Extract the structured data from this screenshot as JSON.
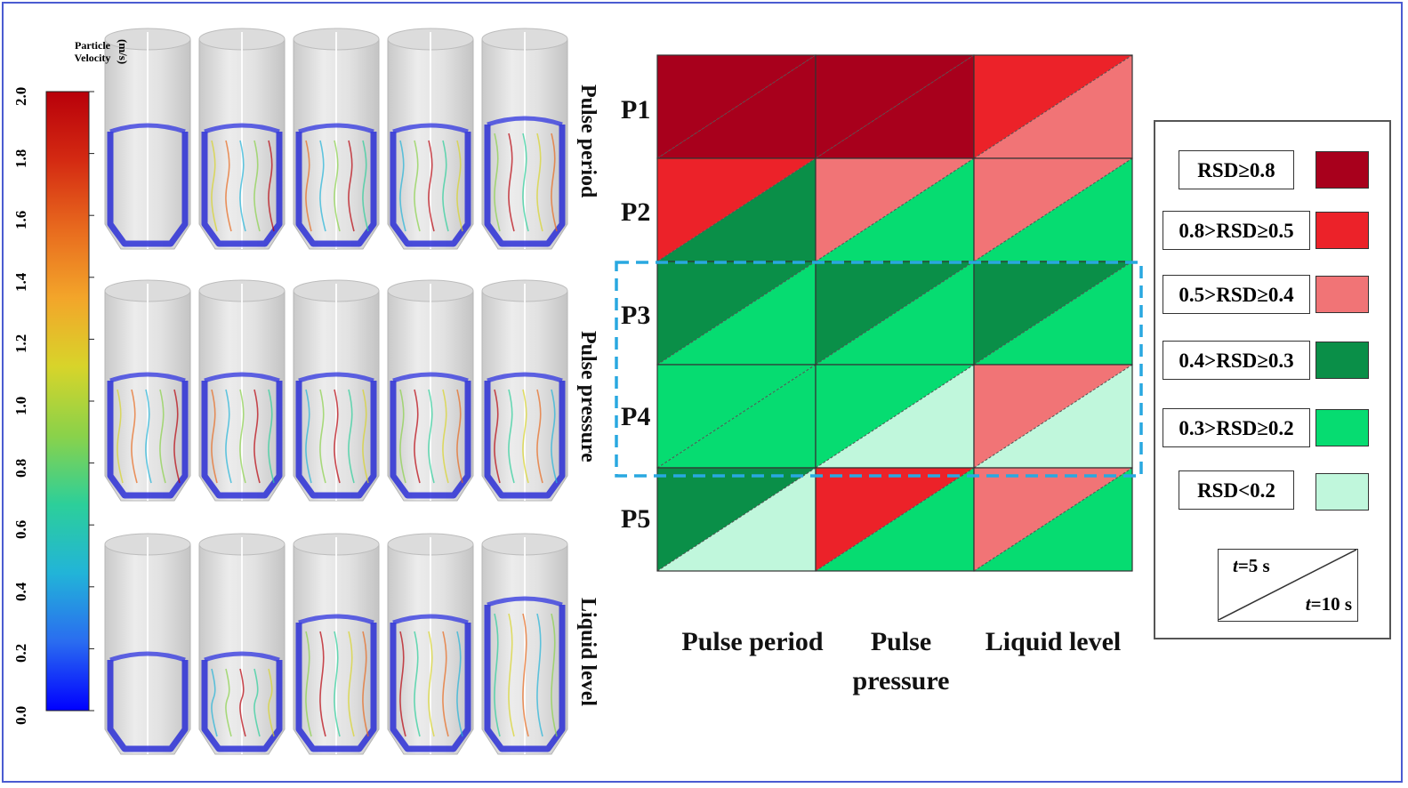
{
  "colorbar": {
    "title": "Particle Velocity",
    "unit": "(m/s)",
    "ticks": [
      "0.0",
      "0.2",
      "0.4",
      "0.6",
      "0.8",
      "1.0",
      "1.2",
      "1.4",
      "1.6",
      "1.8",
      "2.0"
    ],
    "colors": [
      "#0000ff",
      "#2a6cf0",
      "#22b4d8",
      "#2ccf9a",
      "#8ad24a",
      "#d8d42a",
      "#f3a52a",
      "#e86a1e",
      "#d42a12",
      "#b8000a"
    ]
  },
  "simulation_rows": [
    {
      "label": "Pulse period"
    },
    {
      "label": "Pulse pressure"
    },
    {
      "label": "Liquid level"
    }
  ],
  "grid": {
    "row_labels": [
      "P1",
      "P2",
      "P3",
      "P4",
      "P5"
    ],
    "col_labels": [
      "Pulse period",
      "Pulse pressure",
      "Liquid level"
    ],
    "cells": [
      [
        {
          "t5": "RSD≥0.8",
          "t10": "RSD≥0.8"
        },
        {
          "t5": "RSD≥0.8",
          "t10": "RSD≥0.8"
        },
        {
          "t5": "0.8>RSD≥0.5",
          "t10": "0.5>RSD≥0.4"
        }
      ],
      [
        {
          "t5": "0.8>RSD≥0.5",
          "t10": "0.4>RSD≥0.3"
        },
        {
          "t5": "0.5>RSD≥0.4",
          "t10": "0.3>RSD≥0.2"
        },
        {
          "t5": "0.5>RSD≥0.4",
          "t10": "0.3>RSD≥0.2"
        }
      ],
      [
        {
          "t5": "0.4>RSD≥0.3",
          "t10": "0.3>RSD≥0.2"
        },
        {
          "t5": "0.4>RSD≥0.3",
          "t10": "0.3>RSD≥0.2"
        },
        {
          "t5": "0.4>RSD≥0.3",
          "t10": "0.3>RSD≥0.2"
        }
      ],
      [
        {
          "t5": "0.3>RSD≥0.2",
          "t10": "0.3>RSD≥0.2"
        },
        {
          "t5": "0.3>RSD≥0.2",
          "t10": "RSD<0.2"
        },
        {
          "t5": "0.5>RSD≥0.4",
          "t10": "RSD<0.2"
        }
      ],
      [
        {
          "t5": "0.4>RSD≥0.3",
          "t10": "RSD<0.2"
        },
        {
          "t5": "0.8>RSD≥0.5",
          "t10": "0.3>RSD≥0.2"
        },
        {
          "t5": "0.5>RSD≥0.4",
          "t10": "0.3>RSD≥0.2"
        }
      ]
    ],
    "highlight_rows": [
      "P3",
      "P4"
    ],
    "highlight_color": "#29a8e0"
  },
  "legend": {
    "items": [
      {
        "label": "RSD≥0.8",
        "color": "#a8001c"
      },
      {
        "label": "0.8>RSD≥0.5",
        "color": "#ec2229"
      },
      {
        "label": "0.5>RSD≥0.4",
        "color": "#f17476"
      },
      {
        "label": "0.4>RSD≥0.3",
        "color": "#0a8f48"
      },
      {
        "label": "0.3>RSD≥0.2",
        "color": "#06dc71"
      },
      {
        "label": "RSD<0.2",
        "color": "#c0f7dc"
      }
    ],
    "time_top_var": "t",
    "time_top": "=5 s",
    "time_bottom_var": "t",
    "time_bottom": "=10 s"
  }
}
